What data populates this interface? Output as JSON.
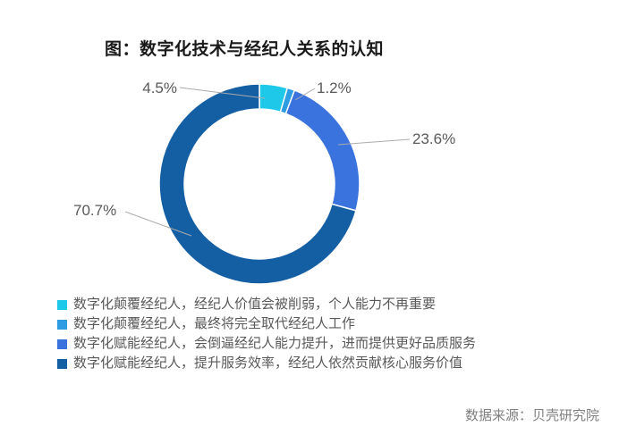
{
  "title": "图：数字化技术与经纪人关系的认知",
  "source": "数据来源：贝壳研究院",
  "colors": {
    "slice_cyan": "#1EC8E8",
    "slice_azure": "#2D9CE3",
    "slice_royal": "#3A72DE",
    "slice_dark": "#145FA4",
    "label_text": "#595959",
    "leader_line": "#ABABAB",
    "source_text": "#7f7f7f",
    "title_text": "#1a1a1a"
  },
  "chart_data": {
    "type": "pie",
    "subtype": "donut",
    "title": "图：数字化技术与经纪人关系的认知",
    "unit": "%",
    "direction": "clockwise",
    "start_angle_deg": 0,
    "legend_position": "bottom-left",
    "categories": [
      "数字化颠覆经纪人，经纪人价值会被削弱，个人能力不再重要",
      "数字化颠覆经纪人，最终将完全取代经纪人工作",
      "数字化赋能经纪人，会倒逼经纪人能力提升，进而提供更好品质服务",
      "数字化赋能经纪人，提升服务效率，经纪人依然贡献核心服务价值"
    ],
    "values": [
      4.5,
      1.2,
      23.6,
      70.7
    ],
    "labels": [
      "4.5%",
      "1.2%",
      "23.6%",
      "70.7%"
    ],
    "colors": [
      "#1EC8E8",
      "#2D9CE3",
      "#3A72DE",
      "#145FA4"
    ]
  },
  "legend": {
    "items": [
      {
        "label": "数字化颠覆经纪人，经纪人价值会被削弱，个人能力不再重要",
        "color": "#1EC8E8"
      },
      {
        "label": "数字化颠覆经纪人，最终将完全取代经纪人工作",
        "color": "#2D9CE3"
      },
      {
        "label": "数字化赋能经纪人，会倒逼经纪人能力提升，进而提供更好品质服务",
        "color": "#3A72DE"
      },
      {
        "label": "数字化赋能经纪人，提升服务效率，经纪人依然贡献核心服务价值",
        "color": "#145FA4"
      }
    ]
  }
}
